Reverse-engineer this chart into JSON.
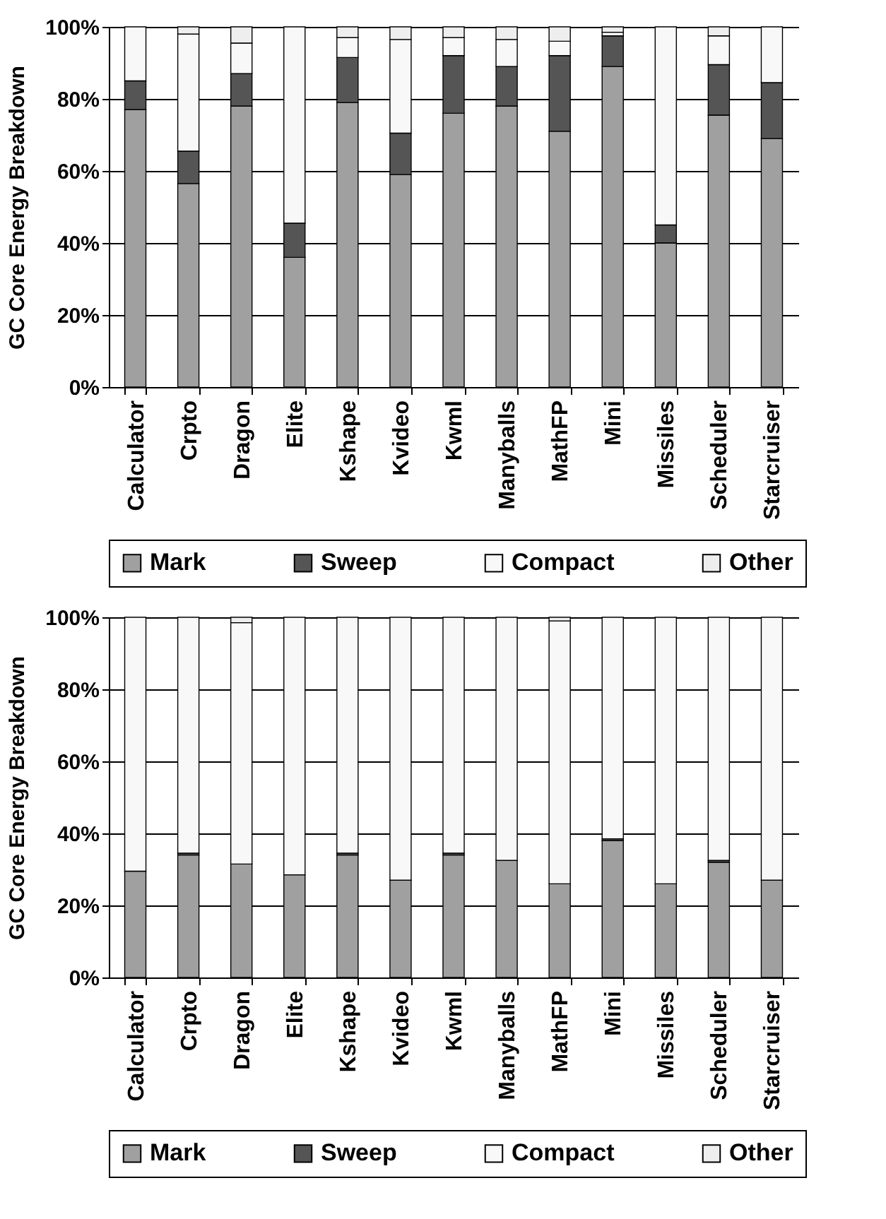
{
  "chart_data": [
    {
      "type": "bar",
      "stacked": true,
      "ylabel": "GC Core Energy Breakdown",
      "categories": [
        "Calculator",
        "Crpto",
        "Dragon",
        "Elite",
        "Kshape",
        "Kvideo",
        "Kwml",
        "Manyballs",
        "MathFP",
        "Mini",
        "Missiles",
        "Scheduler",
        "Starcruiser"
      ],
      "series": [
        {
          "name": "Mark",
          "color": "#a0a0a0",
          "values": [
            77,
            56.5,
            78,
            36,
            79,
            59,
            76,
            78,
            71,
            89,
            40,
            75.5,
            69
          ]
        },
        {
          "name": "Sweep",
          "color": "#555555",
          "values": [
            8,
            9,
            9,
            9.5,
            12.5,
            11.5,
            16,
            11,
            21,
            8.5,
            5,
            14,
            15.5
          ]
        },
        {
          "name": "Compact",
          "color": "#f8f8f8",
          "values": [
            15,
            32.5,
            8.5,
            54.5,
            5.5,
            26,
            5,
            7.5,
            4,
            1,
            55,
            8,
            15.5
          ]
        },
        {
          "name": "Other",
          "color": "#eeeeee",
          "values": [
            0,
            2,
            4.5,
            0,
            3,
            3.5,
            3,
            3.5,
            4,
            1.5,
            0,
            2.5,
            0
          ]
        }
      ],
      "ylim": [
        0,
        100
      ],
      "yticks": [
        {
          "value": 0,
          "label": "0%"
        },
        {
          "value": 20,
          "label": "20%"
        },
        {
          "value": 40,
          "label": "40%"
        },
        {
          "value": 60,
          "label": "60%"
        },
        {
          "value": 80,
          "label": "80%"
        },
        {
          "value": 100,
          "label": "100%"
        }
      ],
      "grid": "y",
      "legend": "bottom"
    },
    {
      "type": "bar",
      "stacked": true,
      "ylabel": "GC Core Energy Breakdown",
      "categories": [
        "Calculator",
        "Crpto",
        "Dragon",
        "Elite",
        "Kshape",
        "Kvideo",
        "Kwml",
        "Manyballs",
        "MathFP",
        "Mini",
        "Missiles",
        "Scheduler",
        "Starcruiser"
      ],
      "series": [
        {
          "name": "Mark",
          "color": "#a0a0a0",
          "values": [
            29.5,
            34,
            31.5,
            28.5,
            34,
            27,
            34,
            32.5,
            26,
            38,
            26,
            32,
            27
          ]
        },
        {
          "name": "Sweep",
          "color": "#555555",
          "values": [
            0,
            0.5,
            0,
            0,
            0.5,
            0,
            0.5,
            0,
            0,
            0.5,
            0,
            0.5,
            0
          ]
        },
        {
          "name": "Compact",
          "color": "#f8f8f8",
          "values": [
            70.5,
            65.5,
            67,
            71.5,
            65.5,
            73,
            65.5,
            67.5,
            73,
            61.5,
            74,
            67.5,
            73
          ]
        },
        {
          "name": "Other",
          "color": "#eeeeee",
          "values": [
            0,
            0,
            1.5,
            0,
            0,
            0,
            0,
            0,
            1,
            0,
            0,
            0,
            0
          ]
        }
      ],
      "ylim": [
        0,
        100
      ],
      "yticks": [
        {
          "value": 0,
          "label": "0%"
        },
        {
          "value": 20,
          "label": "20%"
        },
        {
          "value": 40,
          "label": "40%"
        },
        {
          "value": 60,
          "label": "60%"
        },
        {
          "value": 80,
          "label": "80%"
        },
        {
          "value": 100,
          "label": "100%"
        }
      ],
      "grid": "y",
      "legend": "bottom"
    }
  ]
}
